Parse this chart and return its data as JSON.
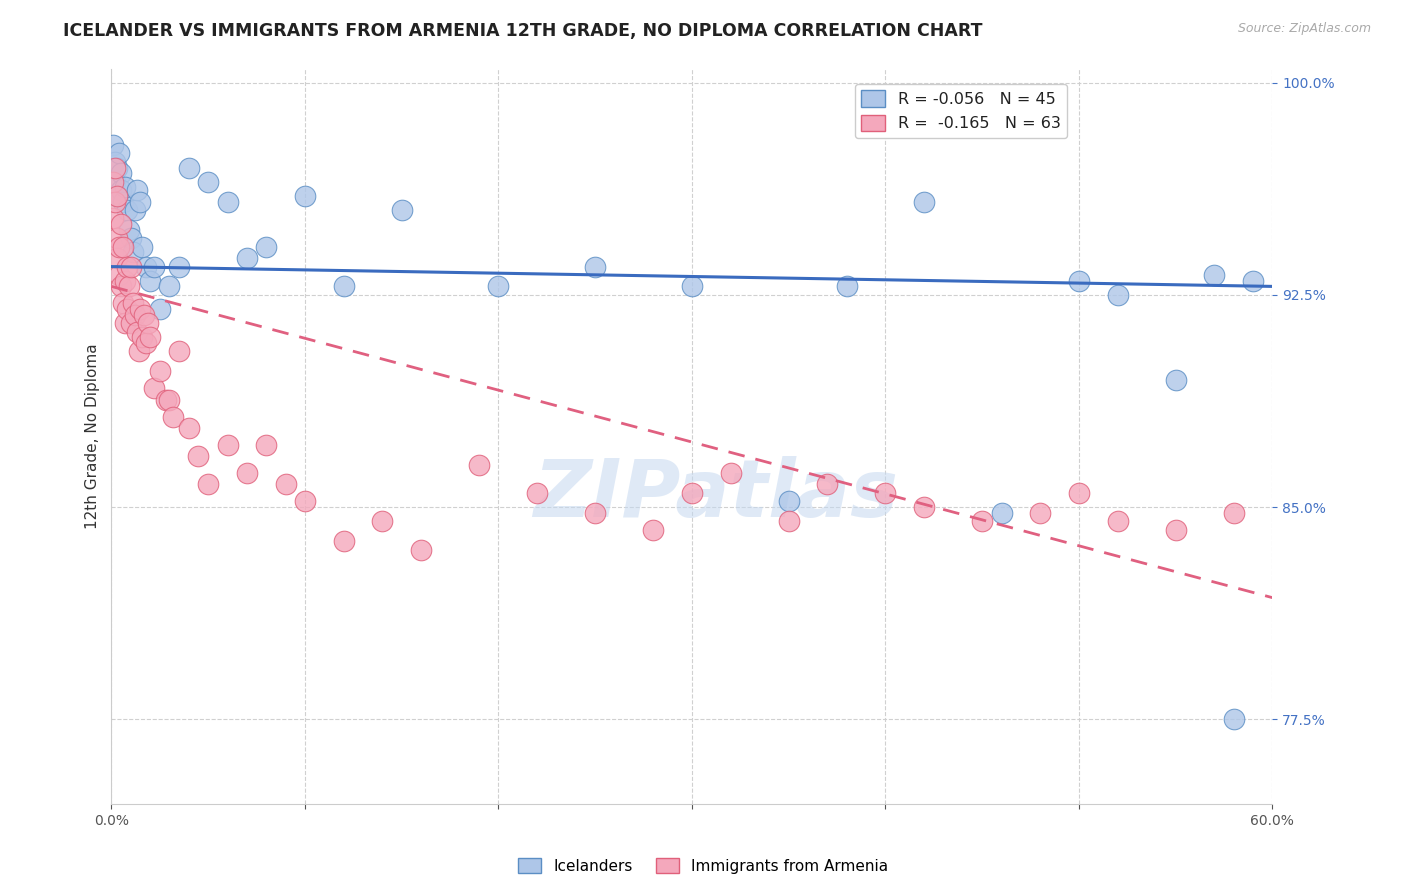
{
  "title": "ICELANDER VS IMMIGRANTS FROM ARMENIA 12TH GRADE, NO DIPLOMA CORRELATION CHART",
  "source": "Source: ZipAtlas.com",
  "ylabel_label": "12th Grade, No Diploma",
  "watermark": "ZIPatlas",
  "icelanders_color": "#aec6e8",
  "armenia_color": "#f4a8bc",
  "icelanders_edge_color": "#5b8ec4",
  "armenia_edge_color": "#e0607a",
  "icelanders_line_color": "#3a6bbf",
  "armenia_line_color": "#e06080",
  "xlim": [
    0.0,
    0.6
  ],
  "ylim": [
    0.745,
    1.005
  ],
  "yticks": [
    0.775,
    0.85,
    0.925,
    1.0
  ],
  "xticks": [
    0.0,
    0.1,
    0.2,
    0.3,
    0.4,
    0.5,
    0.6
  ],
  "ice_line_x0": 0.0,
  "ice_line_y0": 0.935,
  "ice_line_x1": 0.6,
  "ice_line_y1": 0.928,
  "arm_line_x0": 0.0,
  "arm_line_y0": 0.928,
  "arm_line_x1": 0.6,
  "arm_line_y1": 0.818,
  "icelanders_x": [
    0.001,
    0.002,
    0.002,
    0.003,
    0.003,
    0.004,
    0.005,
    0.005,
    0.006,
    0.007,
    0.008,
    0.009,
    0.01,
    0.011,
    0.012,
    0.013,
    0.015,
    0.016,
    0.018,
    0.02,
    0.022,
    0.025,
    0.03,
    0.035,
    0.04,
    0.05,
    0.06,
    0.07,
    0.08,
    0.1,
    0.12,
    0.15,
    0.2,
    0.25,
    0.3,
    0.35,
    0.38,
    0.42,
    0.46,
    0.5,
    0.52,
    0.55,
    0.57,
    0.58,
    0.59
  ],
  "icelanders_y": [
    0.978,
    0.972,
    0.965,
    0.96,
    0.97,
    0.975,
    0.968,
    0.962,
    0.958,
    0.963,
    0.955,
    0.948,
    0.945,
    0.94,
    0.955,
    0.962,
    0.958,
    0.942,
    0.935,
    0.93,
    0.935,
    0.92,
    0.928,
    0.935,
    0.97,
    0.965,
    0.958,
    0.938,
    0.942,
    0.96,
    0.928,
    0.955,
    0.928,
    0.935,
    0.928,
    0.852,
    0.928,
    0.958,
    0.848,
    0.93,
    0.925,
    0.895,
    0.932,
    0.775,
    0.93
  ],
  "armenia_x": [
    0.001,
    0.001,
    0.002,
    0.002,
    0.003,
    0.003,
    0.003,
    0.004,
    0.004,
    0.005,
    0.005,
    0.006,
    0.006,
    0.007,
    0.007,
    0.008,
    0.008,
    0.009,
    0.01,
    0.01,
    0.011,
    0.012,
    0.013,
    0.014,
    0.015,
    0.016,
    0.017,
    0.018,
    0.019,
    0.02,
    0.022,
    0.025,
    0.028,
    0.03,
    0.032,
    0.035,
    0.04,
    0.045,
    0.05,
    0.06,
    0.07,
    0.08,
    0.09,
    0.1,
    0.12,
    0.14,
    0.16,
    0.19,
    0.22,
    0.25,
    0.28,
    0.3,
    0.32,
    0.35,
    0.37,
    0.4,
    0.42,
    0.45,
    0.48,
    0.5,
    0.52,
    0.55,
    0.58
  ],
  "armenia_y": [
    0.965,
    0.952,
    0.97,
    0.958,
    0.96,
    0.945,
    0.938,
    0.942,
    0.932,
    0.95,
    0.928,
    0.942,
    0.922,
    0.93,
    0.915,
    0.935,
    0.92,
    0.928,
    0.935,
    0.915,
    0.922,
    0.918,
    0.912,
    0.905,
    0.92,
    0.91,
    0.918,
    0.908,
    0.915,
    0.91,
    0.892,
    0.898,
    0.888,
    0.888,
    0.882,
    0.905,
    0.878,
    0.868,
    0.858,
    0.872,
    0.862,
    0.872,
    0.858,
    0.852,
    0.838,
    0.845,
    0.835,
    0.865,
    0.855,
    0.848,
    0.842,
    0.855,
    0.862,
    0.845,
    0.858,
    0.855,
    0.85,
    0.845,
    0.848,
    0.855,
    0.845,
    0.842,
    0.848
  ]
}
